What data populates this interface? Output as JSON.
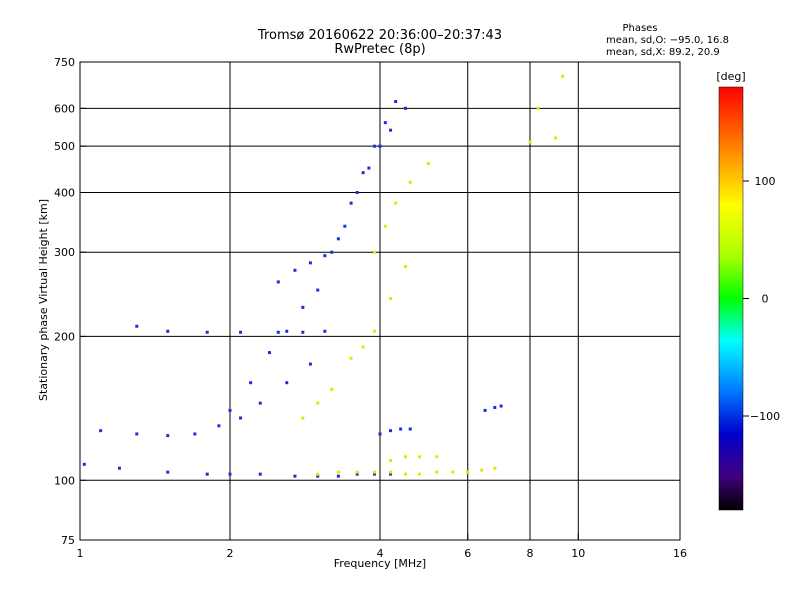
{
  "header": {
    "title_line1": "Tromsø 20160622 20:36:00–20:37:43",
    "title_line2": "RwPretec (8p)",
    "phase_title": "Phases",
    "phase_o": "mean, sd,O: −95.0, 16.8",
    "phase_x": "mean, sd,X:  89.2, 20.9"
  },
  "colorbar": {
    "unit_label": "[deg]",
    "ticks": [
      {
        "value": 100,
        "label": "100"
      },
      {
        "value": 0,
        "label": "0"
      },
      {
        "value": -100,
        "label": "−100"
      }
    ],
    "range": [
      -180,
      180
    ]
  },
  "chart_data": {
    "type": "scatter",
    "title": "Tromsø 20160622 20:36:00–20:37:43",
    "subtitle": "RwPretec (8p)",
    "xlabel": "Frequency [MHz]",
    "ylabel": "Stationary phase Virtual Height [km]",
    "x_scale": "log",
    "y_scale": "log",
    "xlim": [
      1,
      16
    ],
    "ylim": [
      75,
      750
    ],
    "x_ticks": [
      1,
      2,
      4,
      6,
      8,
      10,
      16
    ],
    "x_tick_labels": [
      "1",
      "2",
      "4",
      "6",
      "8",
      "10",
      "16"
    ],
    "y_ticks": [
      75,
      100,
      200,
      300,
      400,
      500,
      600,
      750
    ],
    "y_tick_labels": [
      "75",
      "100",
      "200",
      "300",
      "400",
      "500",
      "600",
      "750"
    ],
    "x_gridlines": [
      2,
      4,
      6,
      8,
      10
    ],
    "y_gridlines": [
      100,
      200,
      300,
      400,
      500,
      600
    ],
    "color_variable": "phase [deg]",
    "series": [
      {
        "name": "O",
        "color": "#1a2ee0",
        "phase_mean": -95.0,
        "phase_sd": 16.8,
        "traces": [
          {
            "x": [
              1.02,
              1.2,
              1.5,
              1.8,
              2.0,
              2.3,
              2.7,
              3.0,
              3.3,
              3.6,
              3.9,
              4.2
            ],
            "y": [
              108,
              106,
              104,
              103,
              103,
              103,
              102,
              102,
              102,
              103,
              103,
              103
            ]
          },
          {
            "x": [
              1.1,
              1.3,
              1.5,
              1.7,
              1.9,
              2.1,
              2.3,
              2.6,
              2.9
            ],
            "y": [
              127,
              125,
              124,
              125,
              130,
              135,
              145,
              160,
              175
            ]
          },
          {
            "x": [
              1.3,
              1.5,
              1.8,
              2.1,
              2.5,
              2.8,
              3.1
            ],
            "y": [
              210,
              205,
              204,
              204,
              204,
              204,
              205
            ]
          },
          {
            "x": [
              2.0,
              2.2,
              2.4,
              2.6,
              2.8,
              3.0
            ],
            "y": [
              140,
              160,
              185,
              205,
              230,
              250
            ]
          },
          {
            "x": [
              2.5,
              2.7,
              2.9,
              3.1,
              3.3,
              3.5,
              3.7,
              3.9,
              4.1,
              4.3
            ],
            "y": [
              260,
              275,
              285,
              295,
              320,
              380,
              440,
              500,
              560,
              620
            ]
          },
          {
            "x": [
              3.2,
              3.4,
              3.6,
              3.8,
              4.0,
              4.2,
              4.5
            ],
            "y": [
              300,
              340,
              400,
              450,
              500,
              540,
              600
            ]
          },
          {
            "x": [
              4.0,
              4.2,
              4.4,
              4.6
            ],
            "y": [
              125,
              127,
              128,
              128
            ]
          },
          {
            "x": [
              6.5,
              6.8,
              7.0
            ],
            "y": [
              140,
              142,
              143
            ]
          }
        ]
      },
      {
        "name": "X",
        "color": "#e6e600",
        "phase_mean": 89.2,
        "phase_sd": 20.9,
        "traces": [
          {
            "x": [
              3.0,
              3.3,
              3.6,
              3.9,
              4.2,
              4.5,
              4.8,
              5.2,
              5.6,
              6.0,
              6.4,
              6.8
            ],
            "y": [
              103,
              104,
              104,
              104,
              104,
              103,
              103,
              104,
              104,
              104,
              105,
              106
            ]
          },
          {
            "x": [
              2.8,
              3.0,
              3.2
            ],
            "y": [
              135,
              145,
              155
            ]
          },
          {
            "x": [
              3.5,
              3.7,
              3.9,
              4.2,
              4.5
            ],
            "y": [
              180,
              190,
              205,
              240,
              280
            ]
          },
          {
            "x": [
              3.9,
              4.1,
              4.3,
              4.6,
              5.0
            ],
            "y": [
              300,
              340,
              380,
              420,
              460
            ]
          },
          {
            "x": [
              4.2,
              4.5,
              4.8,
              5.2
            ],
            "y": [
              110,
              112,
              112,
              112
            ]
          },
          {
            "x": [
              8.0,
              8.3,
              9.0,
              9.3
            ],
            "y": [
              510,
              600,
              520,
              700
            ]
          }
        ]
      }
    ]
  }
}
